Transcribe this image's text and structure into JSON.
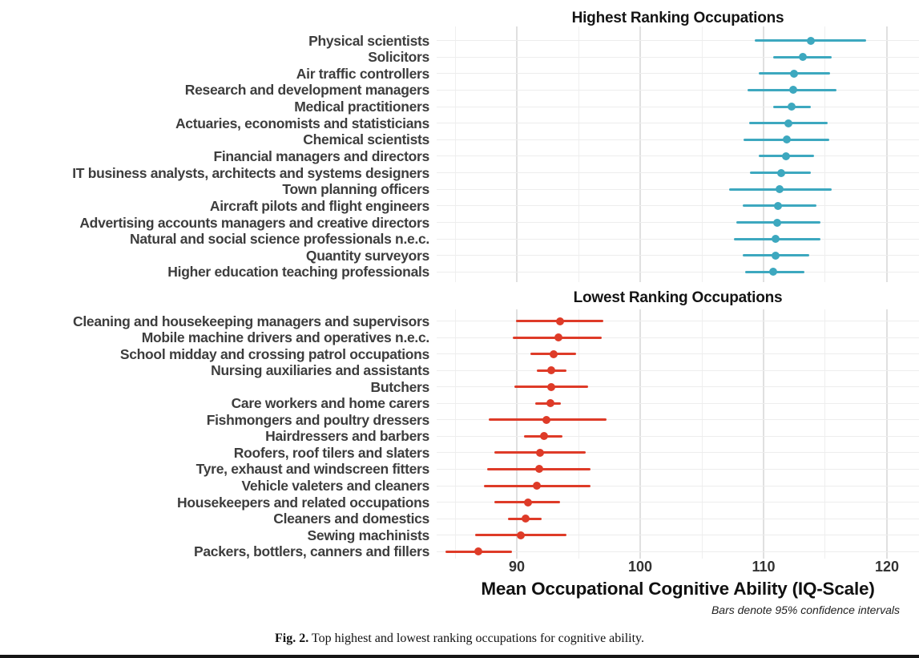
{
  "colors": {
    "highest": "#3DA8BF",
    "lowest": "#DE3B28",
    "grid_major": "#e0e0e0",
    "grid_minor": "#efefef",
    "row_grid": "#ededed"
  },
  "x_axis": {
    "title": "Mean Occupational Cognitive Ability (IQ-Scale)",
    "ticks": [
      90,
      100,
      110,
      120
    ],
    "gridlines": [
      85,
      90,
      95,
      100,
      105,
      110,
      115,
      120
    ],
    "range": [
      83.5,
      122.6
    ]
  },
  "footnote": "Bars denote 95% confidence intervals",
  "caption": {
    "label": "Fig. 2.",
    "text": "Top highest and lowest ranking occupations for cognitive ability."
  },
  "chart_data": [
    {
      "type": "scatter",
      "subtype": "dot-with-95ci-errorbar",
      "title": "Highest Ranking Occupations",
      "color_key": "highest",
      "xlabel": "Mean Occupational Cognitive Ability (IQ-Scale)",
      "xlim": [
        83.5,
        122.6
      ],
      "points": [
        {
          "label": "Physical scientists",
          "mean": 113.8,
          "ci_low": 109.3,
          "ci_high": 118.3
        },
        {
          "label": "Solicitors",
          "mean": 113.2,
          "ci_low": 110.8,
          "ci_high": 115.5
        },
        {
          "label": "Air traffic controllers",
          "mean": 112.5,
          "ci_low": 109.6,
          "ci_high": 115.4
        },
        {
          "label": "Research and development managers",
          "mean": 112.4,
          "ci_low": 108.7,
          "ci_high": 115.9
        },
        {
          "label": "Medical practitioners",
          "mean": 112.3,
          "ci_low": 110.8,
          "ci_high": 113.8
        },
        {
          "label": "Actuaries, economists and statisticians",
          "mean": 112.0,
          "ci_low": 108.8,
          "ci_high": 115.2
        },
        {
          "label": "Chemical scientists",
          "mean": 111.9,
          "ci_low": 108.4,
          "ci_high": 115.3
        },
        {
          "label": "Financial managers and directors",
          "mean": 111.8,
          "ci_low": 109.6,
          "ci_high": 114.1
        },
        {
          "label": "IT business analysts, architects and systems designers",
          "mean": 111.4,
          "ci_low": 108.9,
          "ci_high": 113.8
        },
        {
          "label": "Town planning officers",
          "mean": 111.3,
          "ci_low": 107.2,
          "ci_high": 115.5
        },
        {
          "label": "Aircraft pilots and flight engineers",
          "mean": 111.2,
          "ci_low": 108.3,
          "ci_high": 114.3
        },
        {
          "label": "Advertising accounts managers and creative directors",
          "mean": 111.1,
          "ci_low": 107.8,
          "ci_high": 114.6
        },
        {
          "label": "Natural and social science professionals n.e.c.",
          "mean": 111.0,
          "ci_low": 107.6,
          "ci_high": 114.6
        },
        {
          "label": "Quantity surveyors",
          "mean": 111.0,
          "ci_low": 108.3,
          "ci_high": 113.7
        },
        {
          "label": "Higher education teaching professionals",
          "mean": 110.8,
          "ci_low": 108.5,
          "ci_high": 113.3
        }
      ]
    },
    {
      "type": "scatter",
      "subtype": "dot-with-95ci-errorbar",
      "title": "Lowest Ranking Occupations",
      "color_key": "lowest",
      "xlabel": "Mean Occupational Cognitive Ability (IQ-Scale)",
      "xlim": [
        83.5,
        122.6
      ],
      "points": [
        {
          "label": "Cleaning and housekeeping managers and supervisors",
          "mean": 93.5,
          "ci_low": 89.9,
          "ci_high": 97.0
        },
        {
          "label": "Mobile machine drivers and operatives n.e.c.",
          "mean": 93.4,
          "ci_low": 89.7,
          "ci_high": 96.9
        },
        {
          "label": "School midday and crossing patrol occupations",
          "mean": 93.0,
          "ci_low": 91.1,
          "ci_high": 94.8
        },
        {
          "label": "Nursing auxiliaries and assistants",
          "mean": 92.8,
          "ci_low": 91.6,
          "ci_high": 94.0
        },
        {
          "label": "Butchers",
          "mean": 92.8,
          "ci_low": 89.8,
          "ci_high": 95.8
        },
        {
          "label": "Care workers and home carers",
          "mean": 92.7,
          "ci_low": 91.5,
          "ci_high": 93.6
        },
        {
          "label": "Fishmongers and poultry dressers",
          "mean": 92.4,
          "ci_low": 87.7,
          "ci_high": 97.3
        },
        {
          "label": "Hairdressers and barbers",
          "mean": 92.2,
          "ci_low": 90.6,
          "ci_high": 93.7
        },
        {
          "label": "Roofers, roof tilers and slaters",
          "mean": 91.9,
          "ci_low": 88.2,
          "ci_high": 95.6
        },
        {
          "label": "Tyre, exhaust and windscreen fitters",
          "mean": 91.8,
          "ci_low": 87.6,
          "ci_high": 96.0
        },
        {
          "label": "Vehicle valeters and cleaners",
          "mean": 91.6,
          "ci_low": 87.3,
          "ci_high": 96.0
        },
        {
          "label": "Housekeepers and related occupations",
          "mean": 90.9,
          "ci_low": 88.2,
          "ci_high": 93.5
        },
        {
          "label": "Cleaners and domestics",
          "mean": 90.7,
          "ci_low": 89.3,
          "ci_high": 92.0
        },
        {
          "label": "Sewing machinists",
          "mean": 90.3,
          "ci_low": 86.6,
          "ci_high": 94.0
        },
        {
          "label": "Packers, bottlers, canners and fillers",
          "mean": 86.9,
          "ci_low": 84.2,
          "ci_high": 89.6
        }
      ]
    }
  ]
}
